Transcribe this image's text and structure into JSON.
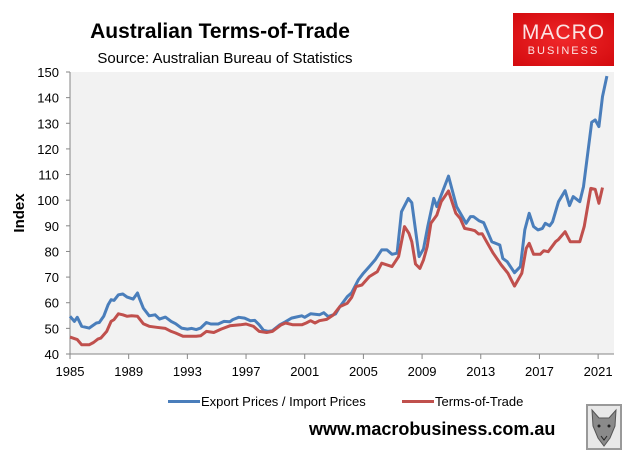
{
  "chart_data": {
    "type": "line",
    "title": "Australian Terms-of-Trade",
    "subtitle": "Source: Australian Bureau of Statistics",
    "xlabel": "",
    "ylabel": "Index",
    "xlim": [
      1985,
      2022.1
    ],
    "ylim": [
      40,
      150
    ],
    "yticks": [
      40,
      50,
      60,
      70,
      80,
      90,
      100,
      110,
      120,
      130,
      140,
      150
    ],
    "xticks": [
      1985,
      1989,
      1993,
      1997,
      2001,
      2005,
      2009,
      2013,
      2017,
      2021
    ],
    "grid": false,
    "legend": "bottom",
    "series": [
      {
        "name": "Export Prices / Import Prices",
        "color": "#4a7ebb",
        "x": [
          1985.0,
          1985.3,
          1985.5,
          1985.8,
          1986.3,
          1986.8,
          1987.0,
          1987.3,
          1987.6,
          1987.8,
          1988.0,
          1988.3,
          1988.6,
          1988.9,
          1989.3,
          1989.6,
          1989.75,
          1990.0,
          1990.4,
          1990.8,
          1991.1,
          1991.5,
          1991.9,
          1992.2,
          1992.6,
          1993.0,
          1993.3,
          1993.6,
          1993.9,
          1994.3,
          1994.6,
          1995.1,
          1995.5,
          1995.9,
          1996.1,
          1996.5,
          1996.9,
          1997.3,
          1997.6,
          1997.9,
          1998.2,
          1998.5,
          1998.8,
          1999.3,
          1999.7,
          2000.1,
          2000.4,
          2000.8,
          2001.0,
          2001.4,
          2002.0,
          2002.3,
          2002.6,
          2003.1,
          2003.4,
          2003.9,
          2004.2,
          2004.65,
          2005.0,
          2005.4,
          2005.8,
          2006.25,
          2006.6,
          2006.95,
          2007.3,
          2007.6,
          2008.06,
          2008.3,
          2008.8,
          2009.1,
          2009.4,
          2009.8,
          2010.0,
          2010.8,
          2011.35,
          2012.0,
          2012.3,
          2012.5,
          2012.9,
          2013.2,
          2013.75,
          2014.3,
          2014.5,
          2014.8,
          2015.3,
          2015.7,
          2016.0,
          2016.3,
          2016.6,
          2016.9,
          2017.2,
          2017.4,
          2017.7,
          2017.9,
          2018.3,
          2018.75,
          2019.05,
          2019.3,
          2019.75,
          2020.0,
          2020.56,
          2020.8,
          2021.05,
          2021.3,
          2021.6
        ],
        "y": [
          54.7,
          52.7,
          54.3,
          50.8,
          50.1,
          52.1,
          52.3,
          54.7,
          59.2,
          61.2,
          60.9,
          63.1,
          63.4,
          62.2,
          61.4,
          63.8,
          61.4,
          57.9,
          54.9,
          55.3,
          53.6,
          54.4,
          52.7,
          51.8,
          50.1,
          49.7,
          50.0,
          49.5,
          50.1,
          52.3,
          51.7,
          51.7,
          52.7,
          52.6,
          53.4,
          54.3,
          54.0,
          53.0,
          53.1,
          51.4,
          49.2,
          48.8,
          49.1,
          51.4,
          52.6,
          54.0,
          54.4,
          54.9,
          54.3,
          55.7,
          55.3,
          56.1,
          54.6,
          55.6,
          58.5,
          62.4,
          63.9,
          68.9,
          71.5,
          74.1,
          76.7,
          80.6,
          80.6,
          78.9,
          79.3,
          95.5,
          100.7,
          99.0,
          78.0,
          81.0,
          90.0,
          100.7,
          97.5,
          109.4,
          97.5,
          91.0,
          93.6,
          93.6,
          91.9,
          91.2,
          83.8,
          82.5,
          77.3,
          76.0,
          71.7,
          74.1,
          88.4,
          94.9,
          89.7,
          88.4,
          89.0,
          91.0,
          90.0,
          91.6,
          99.4,
          103.7,
          97.9,
          101.4,
          99.4,
          105.3,
          130.4,
          131.3,
          128.7,
          140.4,
          148.4
        ]
      },
      {
        "name": "Terms-of-Trade",
        "color": "#c0504d",
        "x": [
          1985.0,
          1985.5,
          1985.8,
          1986.3,
          1986.6,
          1986.9,
          1987.1,
          1987.5,
          1987.8,
          1988.0,
          1988.3,
          1988.6,
          1988.9,
          1989.2,
          1989.6,
          1990.0,
          1990.4,
          1990.9,
          1991.5,
          1991.9,
          1992.2,
          1992.7,
          1993.2,
          1993.6,
          1993.9,
          1994.3,
          1994.8,
          1995.3,
          1995.9,
          1996.6,
          1997.0,
          1997.5,
          1997.9,
          1998.4,
          1998.8,
          1999.4,
          1999.7,
          2000.2,
          2000.8,
          2001.1,
          2001.4,
          2001.7,
          2002.0,
          2002.5,
          2002.95,
          2003.4,
          2003.9,
          2004.2,
          2004.5,
          2004.9,
          2005.4,
          2005.95,
          2006.25,
          2006.95,
          2007.4,
          2007.8,
          2008.1,
          2008.3,
          2008.55,
          2008.85,
          2009.1,
          2009.35,
          2009.6,
          2010.0,
          2010.3,
          2010.8,
          2011.3,
          2011.6,
          2011.9,
          2012.4,
          2012.6,
          2012.85,
          2013.1,
          2013.4,
          2013.85,
          2014.4,
          2014.85,
          2015.3,
          2015.8,
          2016.1,
          2016.3,
          2016.6,
          2017.05,
          2017.3,
          2017.6,
          2018.1,
          2018.3,
          2018.75,
          2019.1,
          2019.75,
          2020.05,
          2020.5,
          2020.8,
          2021.05,
          2021.3
        ],
        "y": [
          46.6,
          45.6,
          43.6,
          43.6,
          44.5,
          45.8,
          46.2,
          48.8,
          52.7,
          53.4,
          55.7,
          55.3,
          54.7,
          54.9,
          54.7,
          51.8,
          50.8,
          50.4,
          50.0,
          48.8,
          48.2,
          46.9,
          46.9,
          46.9,
          47.1,
          48.8,
          48.4,
          49.7,
          51.0,
          51.4,
          51.7,
          50.8,
          48.8,
          48.4,
          48.8,
          51.4,
          52.1,
          51.4,
          51.4,
          52.1,
          53.0,
          52.1,
          53.0,
          53.5,
          55.2,
          58.5,
          59.8,
          62.1,
          66.3,
          66.9,
          70.2,
          72.1,
          75.4,
          74.1,
          78.0,
          89.7,
          87.1,
          83.8,
          75.1,
          73.4,
          76.7,
          81.9,
          91.0,
          94.2,
          99.4,
          103.6,
          94.9,
          92.9,
          89.0,
          88.4,
          88.1,
          86.8,
          86.9,
          83.8,
          79.3,
          74.7,
          71.5,
          66.5,
          71.5,
          81.2,
          83.2,
          78.9,
          78.9,
          80.3,
          79.9,
          83.8,
          84.7,
          87.7,
          83.8,
          83.8,
          89.7,
          104.6,
          104.2,
          98.8,
          104.9
        ]
      }
    ]
  },
  "logo": {
    "line1": "MACRO",
    "line2": "BUSINESS"
  },
  "footer": {
    "url": "www.macrobusiness.com.au",
    "mascot_icon": "fox-icon"
  }
}
